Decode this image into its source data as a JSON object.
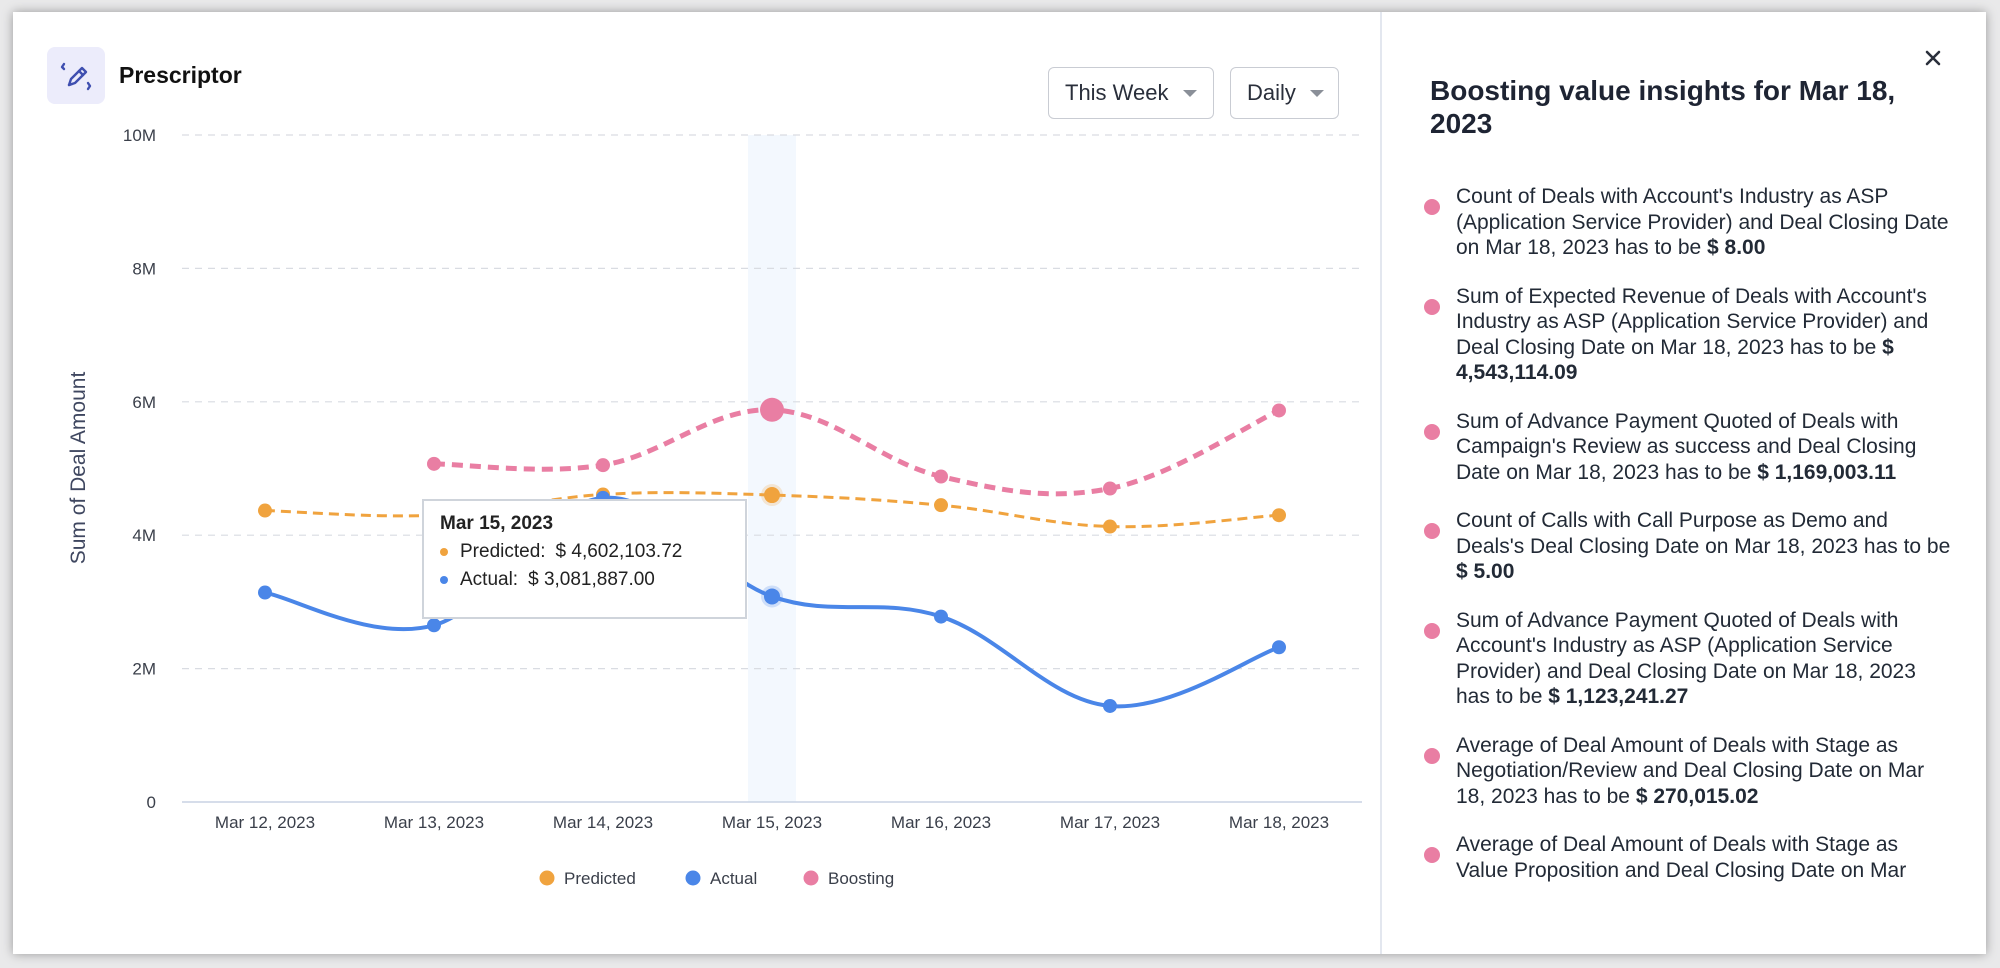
{
  "header": {
    "app_icon": "pencil-edit-icon",
    "title": "Prescriptor"
  },
  "filters": {
    "range": {
      "selected": "This Week",
      "icon": "caret-down-icon"
    },
    "interval": {
      "selected": "Daily",
      "icon": "caret-down-icon"
    }
  },
  "colors": {
    "predicted": "#f0a33e",
    "actual": "#4a86e8",
    "boosting": "#e97ea3",
    "highlight": "#f3f8fe",
    "grid": "#d9dce2"
  },
  "chart_data": {
    "type": "line",
    "title": "",
    "xlabel": "",
    "ylabel": "Sum of Deal Amount",
    "categories": [
      "Mar 12, 2023",
      "Mar 13, 2023",
      "Mar 14, 2023",
      "Mar 15, 2023",
      "Mar 16, 2023",
      "Mar 17, 2023",
      "Mar 18, 2023"
    ],
    "ylim": [
      0,
      10000000
    ],
    "yticks": [
      0,
      2000000,
      4000000,
      6000000,
      8000000,
      10000000
    ],
    "ytick_labels": [
      "0",
      "2M",
      "4M",
      "6M",
      "8M",
      "10M"
    ],
    "grid": true,
    "legend_position": "bottom-center",
    "highlighted_category": "Mar 15, 2023",
    "series": [
      {
        "name": "Predicted",
        "style": "dashed",
        "values": [
          4370000,
          4300000,
          4610000,
          4602103.72,
          4450000,
          4130000,
          4300000
        ]
      },
      {
        "name": "Actual",
        "style": "solid",
        "values": [
          3140000,
          2650000,
          4560000,
          3081887.0,
          2780000,
          1440000,
          2320000
        ]
      },
      {
        "name": "Boosting",
        "style": "dashed",
        "values": [
          null,
          5070000,
          5050000,
          5880000,
          4880000,
          4700000,
          5870000
        ]
      }
    ]
  },
  "tooltip": {
    "title": "Mar 15, 2023",
    "rows": [
      {
        "label": "Predicted:",
        "value": "$ 4,602,103.72"
      },
      {
        "label": "Actual:",
        "value": "$ 3,081,887.00"
      }
    ]
  },
  "legend": [
    {
      "label": "Predicted"
    },
    {
      "label": "Actual"
    },
    {
      "label": "Boosting"
    }
  ],
  "panel": {
    "close_icon": "close-icon",
    "title": "Boosting value insights for Mar 18, 2023",
    "insights": [
      {
        "text": "Count of Deals with Account's Industry as ASP (Application Service Provider) and Deal Closing Date on Mar 18, 2023 has to be ",
        "value": "$ 8.00"
      },
      {
        "text": "Sum of Expected Revenue of Deals with Account's Industry as ASP (Application Service Provider) and Deal Closing Date on Mar 18, 2023 has to be ",
        "value": "$ 4,543,114.09"
      },
      {
        "text": "Sum of Advance Payment Quoted of Deals with Campaign's Review as success and Deal Closing Date on Mar 18, 2023 has to be ",
        "value": "$ 1,169,003.11"
      },
      {
        "text": "Count of Calls with Call Purpose as Demo and Deals's Deal Closing Date on Mar 18, 2023 has to be ",
        "value": "$ 5.00"
      },
      {
        "text": "Sum of Advance Payment Quoted of Deals with Account's Industry as ASP (Application Service Provider) and Deal Closing Date on Mar 18, 2023 has to be ",
        "value": "$ 1,123,241.27"
      },
      {
        "text": "Average of Deal Amount of Deals with Stage as Negotiation/Review and Deal Closing Date on Mar 18, 2023 has to be ",
        "value": "$ 270,015.02"
      },
      {
        "text": "Average of Deal Amount of Deals with Stage as Value Proposition and Deal Closing Date on Mar",
        "value": ""
      }
    ]
  }
}
